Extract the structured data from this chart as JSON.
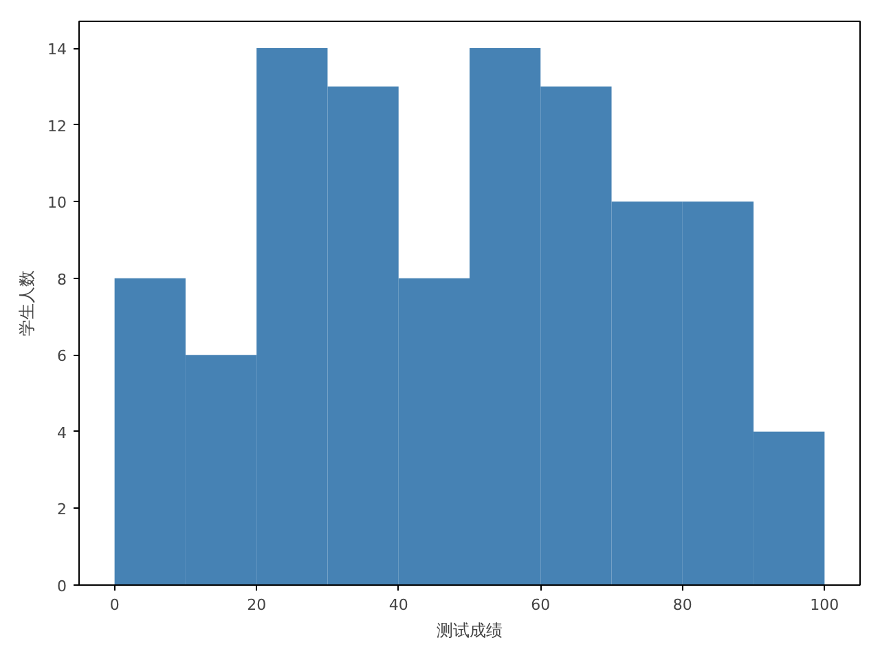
{
  "chart_data": {
    "type": "histogram",
    "xlabel": "测试成绩",
    "ylabel": "学生人数",
    "bins": [
      0,
      10,
      20,
      30,
      40,
      50,
      60,
      70,
      80,
      90,
      100
    ],
    "values": [
      8,
      6,
      14,
      13,
      8,
      14,
      13,
      10,
      10,
      4
    ],
    "color": "#4682b4",
    "xlim": [
      -5,
      105
    ],
    "xticks": [
      0,
      20,
      40,
      60,
      80,
      100
    ],
    "ylim": [
      0,
      14.7
    ],
    "yticks": [
      0,
      2,
      4,
      6,
      8,
      10,
      12,
      14
    ],
    "grid": false
  }
}
